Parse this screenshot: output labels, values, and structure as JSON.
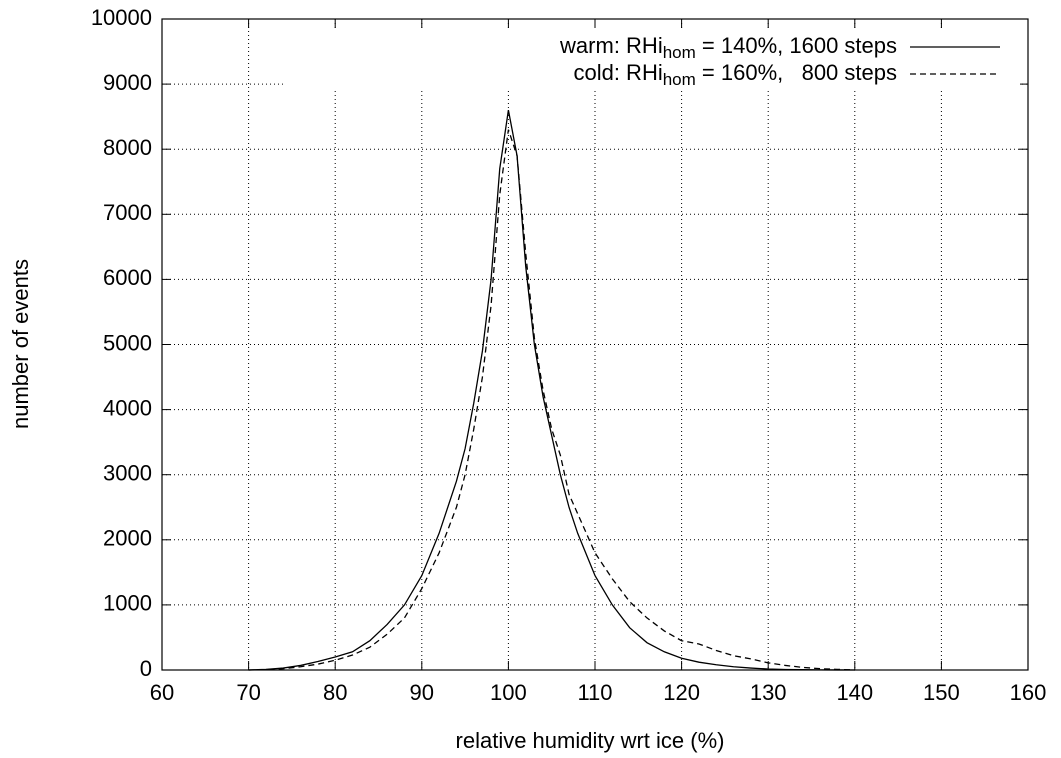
{
  "chart_data": {
    "type": "line",
    "xlabel": "relative humidity wrt ice (%)",
    "ylabel": "number of events",
    "x": [
      70,
      72,
      74,
      76,
      78,
      80,
      82,
      84,
      86,
      88,
      90,
      92,
      94,
      95,
      96,
      97,
      98,
      99,
      100,
      101,
      102,
      103,
      104,
      105,
      106,
      107,
      108,
      110,
      112,
      114,
      116,
      118,
      120,
      122,
      124,
      126,
      128,
      130,
      132,
      134,
      136,
      138,
      140
    ],
    "series": [
      {
        "name": [
          "warm: RHi",
          "hom",
          " = 140%, 1600 steps"
        ],
        "color": "#000000",
        "dash": false,
        "values": [
          0,
          10,
          30,
          70,
          130,
          200,
          280,
          450,
          700,
          1000,
          1450,
          2100,
          2900,
          3400,
          4100,
          4900,
          6000,
          7700,
          8600,
          7900,
          6200,
          5000,
          4200,
          3600,
          3000,
          2500,
          2100,
          1450,
          1000,
          650,
          420,
          280,
          180,
          120,
          80,
          50,
          30,
          15,
          8,
          5,
          2,
          1,
          0
        ]
      },
      {
        "name": [
          "cold: RHi",
          "hom",
          " = 160%,   800 steps"
        ],
        "color": "#000000",
        "dash": true,
        "values": [
          0,
          5,
          20,
          50,
          90,
          150,
          230,
          350,
          550,
          800,
          1250,
          1800,
          2500,
          3000,
          3700,
          4500,
          5600,
          7300,
          8300,
          7900,
          6400,
          5100,
          4300,
          3700,
          3300,
          2700,
          2400,
          1800,
          1400,
          1050,
          800,
          600,
          450,
          400,
          300,
          220,
          170,
          110,
          70,
          40,
          20,
          10,
          0
        ]
      }
    ],
    "xlim": [
      60,
      160
    ],
    "xticks": [
      60,
      70,
      80,
      90,
      100,
      110,
      120,
      130,
      140,
      150,
      160
    ],
    "ylim": [
      0,
      10000
    ],
    "yticks": [
      0,
      1000,
      2000,
      3000,
      4000,
      5000,
      6000,
      7000,
      8000,
      9000,
      10000
    ],
    "grid": true,
    "legend": "top-right"
  }
}
